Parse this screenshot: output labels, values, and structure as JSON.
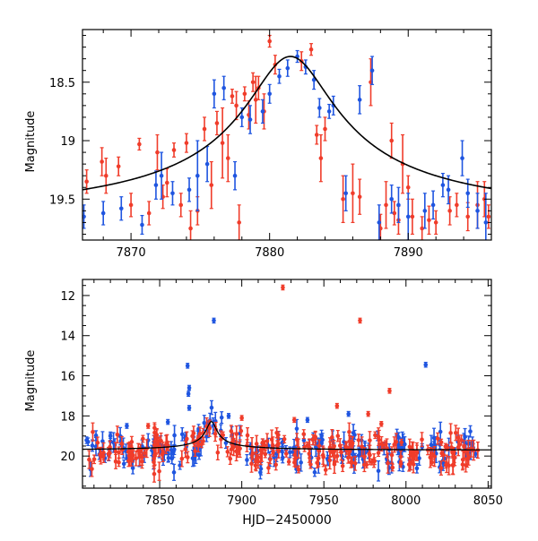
{
  "colors": {
    "red": "#f03c2a",
    "blue": "#1f55e0",
    "curve": "#000000",
    "axis": "#000000"
  },
  "chart_data": [
    {
      "id": "top",
      "type": "scatter",
      "ylabel": "Magnitude",
      "xlabel": "",
      "xlim": [
        7866.5,
        7896
      ],
      "ylim": [
        19.85,
        18.05
      ],
      "y_inverted": true,
      "xticks": [
        7870,
        7880,
        7890
      ],
      "xtick_labels": [
        "7870",
        "7880",
        "7890"
      ],
      "yticks": [
        18.5,
        19,
        19.5
      ],
      "ytick_labels": [
        "18.5",
        "19",
        "19.5"
      ],
      "model_curve": {
        "type": "line",
        "peak_x": 7881.5,
        "peak_mag": 18.28,
        "base_mag": 19.72
      },
      "series": [
        {
          "color_key": "red",
          "points": [
            [
              7866.8,
              19.35,
              0.1
            ],
            [
              7867.9,
              19.18,
              0.12
            ],
            [
              7868.2,
              19.3,
              0.15
            ],
            [
              7869.1,
              19.22,
              0.08
            ],
            [
              7870.0,
              19.55,
              0.1
            ],
            [
              7870.6,
              19.03,
              0.05
            ],
            [
              7871.3,
              19.62,
              0.1
            ],
            [
              7871.9,
              19.1,
              0.15
            ],
            [
              7872.3,
              19.48,
              0.1
            ],
            [
              7872.6,
              19.36,
              0.12
            ],
            [
              7873.1,
              19.08,
              0.06
            ],
            [
              7873.6,
              19.55,
              0.1
            ],
            [
              7874.0,
              19.02,
              0.08
            ],
            [
              7874.3,
              19.75,
              0.15
            ],
            [
              7874.8,
              19.6,
              0.12
            ],
            [
              7875.3,
              18.9,
              0.1
            ],
            [
              7875.8,
              19.38,
              0.2
            ],
            [
              7876.2,
              18.85,
              0.1
            ],
            [
              7876.6,
              19.02,
              0.3
            ],
            [
              7877.0,
              19.15,
              0.2
            ],
            [
              7877.3,
              18.62,
              0.06
            ],
            [
              7877.6,
              18.7,
              0.12
            ],
            [
              7877.8,
              19.7,
              0.15
            ],
            [
              7878.2,
              18.6,
              0.06
            ],
            [
              7878.5,
              18.78,
              0.12
            ],
            [
              7878.8,
              18.5,
              0.08
            ],
            [
              7879.0,
              18.65,
              0.2
            ],
            [
              7879.2,
              18.55,
              0.1
            ],
            [
              7879.6,
              18.75,
              0.15
            ],
            [
              7880.0,
              18.15,
              0.05
            ],
            [
              7880.4,
              18.35,
              0.08
            ],
            [
              7882.3,
              18.32,
              0.08
            ],
            [
              7883.0,
              18.22,
              0.05
            ],
            [
              7883.4,
              18.95,
              0.08
            ],
            [
              7883.7,
              19.15,
              0.2
            ],
            [
              7884.0,
              18.9,
              0.1
            ],
            [
              7885.3,
              19.5,
              0.2
            ],
            [
              7886.0,
              19.45,
              0.25
            ],
            [
              7886.5,
              19.48,
              0.15
            ],
            [
              7887.3,
              18.5,
              0.2
            ],
            [
              7888.0,
              19.75,
              0.12
            ],
            [
              7888.4,
              19.55,
              0.2
            ],
            [
              7888.8,
              19.0,
              0.15
            ],
            [
              7889.0,
              19.62,
              0.1
            ],
            [
              7889.3,
              19.68,
              0.12
            ],
            [
              7889.6,
              19.2,
              0.25
            ],
            [
              7890.0,
              19.4,
              0.1
            ],
            [
              7890.3,
              19.65,
              0.15
            ],
            [
              7891.0,
              19.75,
              0.1
            ],
            [
              7891.5,
              19.68,
              0.12
            ],
            [
              7892.0,
              19.7,
              0.1
            ],
            [
              7893.0,
              19.6,
              0.12
            ],
            [
              7893.5,
              19.55,
              0.1
            ],
            [
              7894.3,
              19.65,
              0.12
            ],
            [
              7895.0,
              19.55,
              0.2
            ],
            [
              7895.5,
              19.5,
              0.15
            ],
            [
              7895.8,
              19.65,
              0.1
            ]
          ]
        },
        {
          "color_key": "blue",
          "points": [
            [
              7866.6,
              19.65,
              0.1
            ],
            [
              7868.0,
              19.62,
              0.1
            ],
            [
              7869.3,
              19.58,
              0.1
            ],
            [
              7870.8,
              19.72,
              0.08
            ],
            [
              7871.8,
              19.38,
              0.12
            ],
            [
              7872.2,
              19.3,
              0.2
            ],
            [
              7873.0,
              19.45,
              0.1
            ],
            [
              7874.2,
              19.42,
              0.1
            ],
            [
              7874.8,
              19.3,
              0.3
            ],
            [
              7875.5,
              19.2,
              0.15
            ],
            [
              7876.0,
              18.6,
              0.12
            ],
            [
              7876.7,
              18.55,
              0.1
            ],
            [
              7877.5,
              19.3,
              0.12
            ],
            [
              7878.0,
              18.8,
              0.08
            ],
            [
              7878.6,
              18.82,
              0.12
            ],
            [
              7879.5,
              18.75,
              0.1
            ],
            [
              7880.0,
              18.6,
              0.08
            ],
            [
              7880.7,
              18.45,
              0.06
            ],
            [
              7881.3,
              18.38,
              0.07
            ],
            [
              7882.0,
              18.28,
              0.05
            ],
            [
              7882.6,
              18.37,
              0.06
            ],
            [
              7883.2,
              18.48,
              0.08
            ],
            [
              7883.6,
              18.72,
              0.08
            ],
            [
              7884.3,
              18.75,
              0.06
            ],
            [
              7884.6,
              18.7,
              0.08
            ],
            [
              7885.5,
              19.45,
              0.15
            ],
            [
              7886.5,
              18.65,
              0.12
            ],
            [
              7887.4,
              18.4,
              0.12
            ],
            [
              7887.9,
              19.7,
              0.15
            ],
            [
              7888.8,
              19.5,
              0.12
            ],
            [
              7889.3,
              19.55,
              0.15
            ],
            [
              7890.0,
              19.65,
              0.2
            ],
            [
              7891.2,
              19.6,
              0.15
            ],
            [
              7891.8,
              19.55,
              0.12
            ],
            [
              7892.5,
              19.38,
              0.1
            ],
            [
              7892.9,
              19.42,
              0.12
            ],
            [
              7893.9,
              19.15,
              0.15
            ],
            [
              7894.3,
              19.45,
              0.12
            ],
            [
              7895.0,
              19.6,
              0.15
            ],
            [
              7895.6,
              19.7,
              0.25
            ]
          ]
        }
      ]
    },
    {
      "id": "bottom",
      "type": "scatter",
      "ylabel": "Magnitude",
      "xlabel": "HJD−2450000",
      "xlim": [
        7803,
        8052
      ],
      "ylim": [
        21.6,
        11.2
      ],
      "y_inverted": true,
      "xticks": [
        7850,
        7900,
        7950,
        8000,
        8050
      ],
      "xtick_labels": [
        "7850",
        "7900",
        "7950",
        "8000",
        "8050"
      ],
      "yticks": [
        12,
        14,
        16,
        18,
        20
      ],
      "ytick_labels": [
        "12",
        "14",
        "16",
        "18",
        "20"
      ],
      "baseline_mag": 19.72,
      "model_peak_x": 7881.5,
      "model_peak_mag": 18.28,
      "outliers": [
        {
          "color_key": "red",
          "x": 7925,
          "y": 11.6
        },
        {
          "color_key": "red",
          "x": 7972,
          "y": 13.25
        },
        {
          "color_key": "blue",
          "x": 7883,
          "y": 13.25
        },
        {
          "color_key": "blue",
          "x": 7867,
          "y": 15.5
        },
        {
          "color_key": "blue",
          "x": 7868,
          "y": 16.6
        },
        {
          "color_key": "blue",
          "x": 7867.5,
          "y": 16.9
        },
        {
          "color_key": "blue",
          "x": 7868,
          "y": 17.6
        },
        {
          "color_key": "blue",
          "x": 8012,
          "y": 15.45
        },
        {
          "color_key": "red",
          "x": 7990,
          "y": 16.75
        },
        {
          "color_key": "red",
          "x": 7958,
          "y": 17.5
        },
        {
          "color_key": "red",
          "x": 7977,
          "y": 17.9
        },
        {
          "color_key": "red",
          "x": 7932,
          "y": 18.2
        },
        {
          "color_key": "blue",
          "x": 7965,
          "y": 17.9
        },
        {
          "color_key": "blue",
          "x": 7892,
          "y": 18.0
        },
        {
          "color_key": "blue",
          "x": 7830,
          "y": 18.5
        },
        {
          "color_key": "blue",
          "x": 7855,
          "y": 18.3
        },
        {
          "color_key": "red",
          "x": 7985,
          "y": 18.4
        },
        {
          "color_key": "red",
          "x": 7900,
          "y": 18.1
        },
        {
          "color_key": "blue",
          "x": 7940,
          "y": 18.2
        },
        {
          "color_key": "blue",
          "x": 7820,
          "y": 19.0
        },
        {
          "color_key": "red",
          "x": 7843,
          "y": 18.5
        }
      ],
      "scatter_note_red_count": 260,
      "scatter_note_blue_count": 200,
      "scatter_y_range": [
        18.6,
        21.2
      ],
      "scatter_x_range": [
        7805,
        8045
      ]
    }
  ]
}
